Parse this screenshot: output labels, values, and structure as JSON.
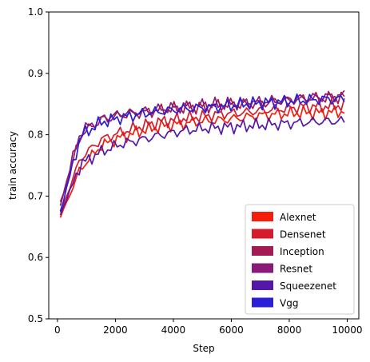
{
  "chart_data": {
    "type": "line",
    "title": "",
    "xlabel": "Step",
    "ylabel": "train accuracy",
    "xlim": [
      -300,
      10400
    ],
    "ylim": [
      0.5,
      1.0
    ],
    "xticks": [
      0,
      2000,
      4000,
      6000,
      8000,
      10000
    ],
    "xtick_labels": [
      "0",
      "2000",
      "4000",
      "6000",
      "8000",
      "10000"
    ],
    "yticks": [
      0.5,
      0.6,
      0.7,
      0.8,
      0.9,
      1.0
    ],
    "ytick_labels": [
      "0.5",
      "0.6",
      "0.7",
      "0.8",
      "0.9",
      "1.0"
    ],
    "grid": false,
    "legend_position": "bottom-right",
    "x": [
      100,
      800,
      1500,
      2200,
      2900,
      3600,
      4300,
      5000,
      5700,
      6400,
      7100,
      7800,
      8500,
      9200,
      9900
    ],
    "series": [
      {
        "name": "Alexnet",
        "color": "#f51e0a",
        "values": [
          0.665,
          0.745,
          0.782,
          0.796,
          0.806,
          0.814,
          0.818,
          0.822,
          0.824,
          0.828,
          0.832,
          0.834,
          0.836,
          0.836,
          0.838
        ]
      },
      {
        "name": "Densenet",
        "color": "#d41c2e",
        "values": [
          0.672,
          0.762,
          0.792,
          0.804,
          0.814,
          0.822,
          0.826,
          0.83,
          0.834,
          0.836,
          0.84,
          0.842,
          0.846,
          0.846,
          0.848
        ]
      },
      {
        "name": "Inception",
        "color": "#a41a52",
        "values": [
          0.684,
          0.8,
          0.824,
          0.832,
          0.836,
          0.84,
          0.844,
          0.846,
          0.848,
          0.85,
          0.852,
          0.856,
          0.858,
          0.86,
          0.862
        ]
      },
      {
        "name": "Resnet",
        "color": "#8a1a78",
        "values": [
          0.688,
          0.806,
          0.826,
          0.834,
          0.838,
          0.842,
          0.846,
          0.848,
          0.85,
          0.852,
          0.854,
          0.856,
          0.86,
          0.862,
          0.864
        ]
      },
      {
        "name": "Squeezenet",
        "color": "#5418a8",
        "values": [
          0.67,
          0.752,
          0.772,
          0.785,
          0.792,
          0.8,
          0.806,
          0.81,
          0.812,
          0.814,
          0.816,
          0.818,
          0.82,
          0.822,
          0.822
        ]
      },
      {
        "name": "Vgg",
        "color": "#2a1ed6",
        "values": [
          0.675,
          0.798,
          0.82,
          0.828,
          0.834,
          0.838,
          0.842,
          0.844,
          0.846,
          0.85,
          0.852,
          0.854,
          0.856,
          0.858,
          0.858
        ]
      }
    ]
  }
}
